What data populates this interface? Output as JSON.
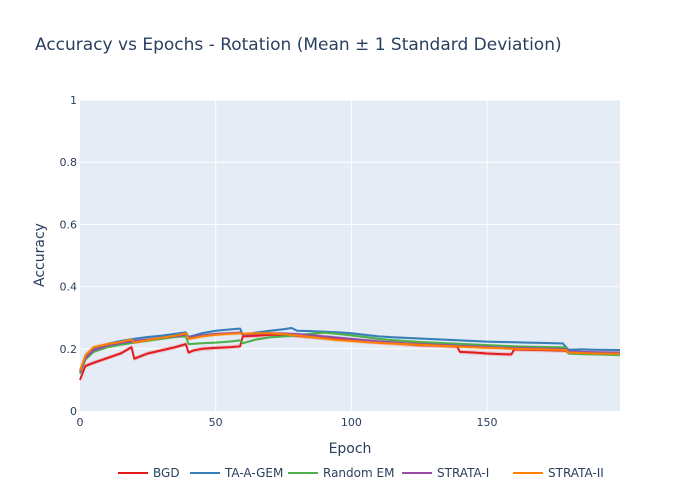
{
  "chart_data": {
    "type": "line",
    "title": "Accuracy vs Epochs - Rotation (Mean ± 1 Standard Deviation)",
    "xlabel": "Epoch",
    "ylabel": "Accuracy",
    "xlim": [
      0,
      199
    ],
    "ylim": [
      0,
      1
    ],
    "xticks": [
      0,
      50,
      100,
      150
    ],
    "yticks": [
      0,
      0.2,
      0.4,
      0.6,
      0.8,
      1
    ],
    "ytick_labels": [
      "0",
      "0.2",
      "0.4",
      "0.6",
      "0.8",
      "1"
    ],
    "grid": true,
    "legend_position": "bottom",
    "series": [
      {
        "name": "BGD",
        "color": "#e41a1c",
        "points": [
          [
            0,
            0.1
          ],
          [
            2,
            0.145
          ],
          [
            5,
            0.155
          ],
          [
            10,
            0.17
          ],
          [
            15,
            0.185
          ],
          [
            18,
            0.2
          ],
          [
            19,
            0.205
          ],
          [
            20,
            0.168
          ],
          [
            22,
            0.175
          ],
          [
            25,
            0.185
          ],
          [
            30,
            0.195
          ],
          [
            35,
            0.205
          ],
          [
            39,
            0.215
          ],
          [
            40,
            0.188
          ],
          [
            42,
            0.195
          ],
          [
            45,
            0.2
          ],
          [
            50,
            0.203
          ],
          [
            55,
            0.205
          ],
          [
            59,
            0.208
          ],
          [
            60,
            0.24
          ],
          [
            65,
            0.242
          ],
          [
            70,
            0.245
          ],
          [
            78,
            0.243
          ],
          [
            85,
            0.238
          ],
          [
            95,
            0.232
          ],
          [
            105,
            0.225
          ],
          [
            115,
            0.218
          ],
          [
            125,
            0.212
          ],
          [
            133,
            0.21
          ],
          [
            139,
            0.207
          ],
          [
            140,
            0.19
          ],
          [
            145,
            0.188
          ],
          [
            150,
            0.185
          ],
          [
            155,
            0.183
          ],
          [
            159,
            0.182
          ],
          [
            160,
            0.198
          ],
          [
            165,
            0.197
          ],
          [
            170,
            0.196
          ],
          [
            175,
            0.195
          ],
          [
            179,
            0.194
          ],
          [
            180,
            0.188
          ],
          [
            190,
            0.186
          ],
          [
            199,
            0.183
          ]
        ],
        "band": 0.007
      },
      {
        "name": "TA-A-GEM",
        "color": "#377eb8",
        "points": [
          [
            0,
            0.13
          ],
          [
            2,
            0.175
          ],
          [
            5,
            0.2
          ],
          [
            10,
            0.215
          ],
          [
            15,
            0.225
          ],
          [
            20,
            0.232
          ],
          [
            25,
            0.238
          ],
          [
            30,
            0.242
          ],
          [
            35,
            0.248
          ],
          [
            39,
            0.253
          ],
          [
            40,
            0.238
          ],
          [
            45,
            0.25
          ],
          [
            50,
            0.258
          ],
          [
            55,
            0.262
          ],
          [
            59,
            0.265
          ],
          [
            60,
            0.245
          ],
          [
            65,
            0.252
          ],
          [
            70,
            0.258
          ],
          [
            75,
            0.263
          ],
          [
            78,
            0.267
          ],
          [
            80,
            0.258
          ],
          [
            85,
            0.257
          ],
          [
            90,
            0.255
          ],
          [
            95,
            0.253
          ],
          [
            100,
            0.25
          ],
          [
            105,
            0.245
          ],
          [
            110,
            0.24
          ],
          [
            115,
            0.237
          ],
          [
            120,
            0.235
          ],
          [
            125,
            0.233
          ],
          [
            130,
            0.231
          ],
          [
            135,
            0.229
          ],
          [
            140,
            0.227
          ],
          [
            145,
            0.225
          ],
          [
            150,
            0.223
          ],
          [
            155,
            0.222
          ],
          [
            160,
            0.221
          ],
          [
            165,
            0.22
          ],
          [
            170,
            0.219
          ],
          [
            175,
            0.218
          ],
          [
            178,
            0.217
          ],
          [
            180,
            0.197
          ],
          [
            185,
            0.198
          ],
          [
            190,
            0.197
          ],
          [
            199,
            0.196
          ]
        ],
        "band": 0.004
      },
      {
        "name": "Random EM",
        "color": "#4daf4a",
        "points": [
          [
            0,
            0.12
          ],
          [
            2,
            0.165
          ],
          [
            5,
            0.19
          ],
          [
            10,
            0.205
          ],
          [
            15,
            0.213
          ],
          [
            20,
            0.22
          ],
          [
            25,
            0.226
          ],
          [
            30,
            0.232
          ],
          [
            35,
            0.238
          ],
          [
            39,
            0.24
          ],
          [
            40,
            0.215
          ],
          [
            45,
            0.218
          ],
          [
            50,
            0.22
          ],
          [
            55,
            0.223
          ],
          [
            59,
            0.227
          ],
          [
            60,
            0.218
          ],
          [
            65,
            0.23
          ],
          [
            70,
            0.237
          ],
          [
            75,
            0.24
          ],
          [
            80,
            0.243
          ],
          [
            85,
            0.248
          ],
          [
            90,
            0.252
          ],
          [
            95,
            0.248
          ],
          [
            100,
            0.243
          ],
          [
            105,
            0.238
          ],
          [
            110,
            0.232
          ],
          [
            115,
            0.228
          ],
          [
            120,
            0.225
          ],
          [
            125,
            0.222
          ],
          [
            130,
            0.22
          ],
          [
            135,
            0.218
          ],
          [
            140,
            0.216
          ],
          [
            145,
            0.214
          ],
          [
            150,
            0.212
          ],
          [
            155,
            0.21
          ],
          [
            160,
            0.208
          ],
          [
            165,
            0.207
          ],
          [
            170,
            0.206
          ],
          [
            175,
            0.205
          ],
          [
            179,
            0.205
          ],
          [
            180,
            0.185
          ],
          [
            185,
            0.183
          ],
          [
            190,
            0.182
          ],
          [
            199,
            0.18
          ]
        ],
        "band": 0.004
      },
      {
        "name": "STRATA-I",
        "color": "#984ea3",
        "points": [
          [
            0,
            0.125
          ],
          [
            2,
            0.17
          ],
          [
            5,
            0.195
          ],
          [
            10,
            0.21
          ],
          [
            15,
            0.218
          ],
          [
            20,
            0.225
          ],
          [
            25,
            0.23
          ],
          [
            30,
            0.235
          ],
          [
            35,
            0.24
          ],
          [
            39,
            0.245
          ],
          [
            40,
            0.238
          ],
          [
            45,
            0.243
          ],
          [
            50,
            0.248
          ],
          [
            55,
            0.25
          ],
          [
            59,
            0.252
          ],
          [
            60,
            0.245
          ],
          [
            65,
            0.248
          ],
          [
            70,
            0.25
          ],
          [
            75,
            0.249
          ],
          [
            80,
            0.247
          ],
          [
            85,
            0.244
          ],
          [
            90,
            0.24
          ],
          [
            95,
            0.236
          ],
          [
            100,
            0.232
          ],
          [
            105,
            0.228
          ],
          [
            110,
            0.224
          ],
          [
            115,
            0.221
          ],
          [
            120,
            0.218
          ],
          [
            125,
            0.216
          ],
          [
            130,
            0.214
          ],
          [
            135,
            0.212
          ],
          [
            140,
            0.21
          ],
          [
            145,
            0.208
          ],
          [
            150,
            0.206
          ],
          [
            155,
            0.204
          ],
          [
            160,
            0.203
          ],
          [
            165,
            0.202
          ],
          [
            170,
            0.201
          ],
          [
            175,
            0.2
          ],
          [
            179,
            0.199
          ],
          [
            180,
            0.192
          ],
          [
            185,
            0.19
          ],
          [
            190,
            0.189
          ],
          [
            199,
            0.188
          ]
        ],
        "band": 0.005
      },
      {
        "name": "STRATA-II",
        "color": "#ff7f00",
        "points": [
          [
            0,
            0.13
          ],
          [
            2,
            0.18
          ],
          [
            5,
            0.205
          ],
          [
            10,
            0.215
          ],
          [
            15,
            0.222
          ],
          [
            19,
            0.23
          ],
          [
            20,
            0.22
          ],
          [
            25,
            0.228
          ],
          [
            30,
            0.235
          ],
          [
            35,
            0.242
          ],
          [
            39,
            0.25
          ],
          [
            40,
            0.232
          ],
          [
            45,
            0.24
          ],
          [
            50,
            0.245
          ],
          [
            55,
            0.248
          ],
          [
            59,
            0.25
          ],
          [
            60,
            0.248
          ],
          [
            65,
            0.25
          ],
          [
            70,
            0.25
          ],
          [
            75,
            0.247
          ],
          [
            80,
            0.243
          ],
          [
            85,
            0.238
          ],
          [
            90,
            0.233
          ],
          [
            95,
            0.228
          ],
          [
            100,
            0.225
          ],
          [
            105,
            0.222
          ],
          [
            110,
            0.219
          ],
          [
            115,
            0.217
          ],
          [
            120,
            0.215
          ],
          [
            125,
            0.213
          ],
          [
            130,
            0.211
          ],
          [
            135,
            0.209
          ],
          [
            140,
            0.207
          ],
          [
            145,
            0.205
          ],
          [
            150,
            0.203
          ],
          [
            155,
            0.202
          ],
          [
            160,
            0.2
          ],
          [
            165,
            0.199
          ],
          [
            170,
            0.198
          ],
          [
            175,
            0.197
          ],
          [
            179,
            0.196
          ],
          [
            180,
            0.188
          ],
          [
            185,
            0.186
          ],
          [
            190,
            0.185
          ],
          [
            199,
            0.184
          ]
        ],
        "band": 0.006
      }
    ]
  }
}
